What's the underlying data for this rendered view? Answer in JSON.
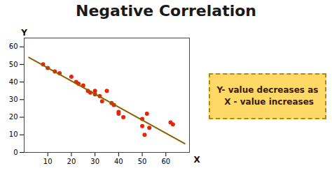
{
  "chart_data": {
    "type": "scatter",
    "title": "Negative Correlation",
    "xlabel": "X",
    "ylabel": "Y",
    "annotation": "Y- value decreases as\n X - value increases",
    "series": [
      {
        "type": "scatter",
        "color": "#e8230a",
        "x": [
          8,
          10,
          13,
          15,
          20,
          22,
          23,
          25,
          27,
          28,
          30,
          30,
          32,
          33,
          35,
          37,
          38,
          40,
          40,
          42,
          50,
          50,
          51,
          52,
          53,
          62,
          63
        ],
        "values": [
          50,
          48,
          46,
          45,
          43,
          40,
          39,
          38,
          35,
          34,
          35,
          33,
          32,
          29,
          35,
          28,
          27,
          23,
          22,
          20,
          19,
          15,
          10,
          22,
          14,
          17,
          16
        ]
      },
      {
        "type": "line",
        "color": "#8B6000",
        "x": [
          2,
          68
        ],
        "values": [
          54,
          5
        ]
      }
    ],
    "xlim": [
      0,
      70
    ],
    "ylim": [
      0,
      65
    ],
    "xticks": [
      10,
      20,
      30,
      40,
      50,
      60
    ],
    "yticks": [
      0,
      10,
      20,
      30,
      40,
      50,
      60
    ],
    "grid": false
  }
}
